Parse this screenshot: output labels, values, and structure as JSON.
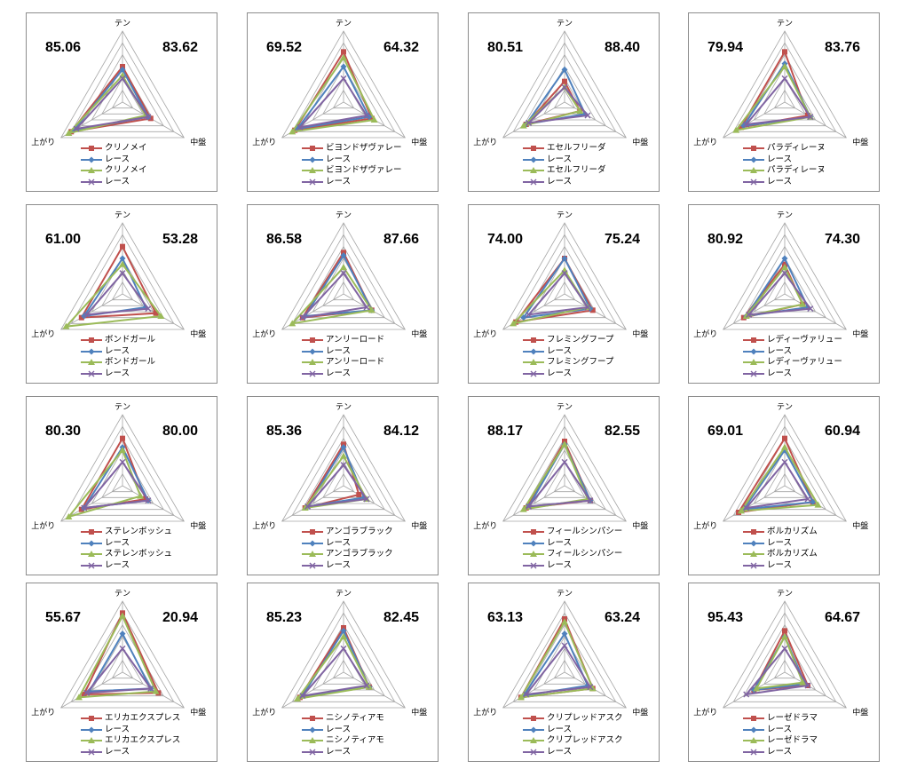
{
  "axes": [
    "テン",
    "中盤",
    "上がり"
  ],
  "colors": {
    "horse": "#c0504d",
    "race": "#4f81bd",
    "horse2": "#9bbb59",
    "race2": "#8064a2"
  },
  "charts": [
    {
      "type": "radar",
      "scores": [
        "85.06",
        "83.62"
      ],
      "series": [
        {
          "name": "クリノメイ",
          "marker": "square",
          "values": [
            60,
            55,
            100
          ]
        },
        {
          "name": "レース",
          "marker": "diamond",
          "values": [
            55,
            50,
            95
          ]
        },
        {
          "name": "クリノメイ",
          "marker": "triangle",
          "values": [
            45,
            45,
            105
          ]
        },
        {
          "name": "レース",
          "marker": "x",
          "values": [
            40,
            50,
            90
          ]
        }
      ]
    },
    {
      "type": "radar",
      "scores": [
        "69.52",
        "64.32"
      ],
      "series": [
        {
          "name": "ビヨンドザヴァレー",
          "marker": "square",
          "values": [
            85,
            55,
            95
          ]
        },
        {
          "name": "レース",
          "marker": "diamond",
          "values": [
            60,
            50,
            90
          ]
        },
        {
          "name": "ビヨンドザヴァレー",
          "marker": "triangle",
          "values": [
            75,
            60,
            100
          ]
        },
        {
          "name": "レース",
          "marker": "x",
          "values": [
            40,
            45,
            85
          ]
        }
      ]
    },
    {
      "type": "radar",
      "scores": [
        "80.51",
        "88.40"
      ],
      "series": [
        {
          "name": "エセルフリーダ",
          "marker": "square",
          "values": [
            35,
            30,
            75
          ]
        },
        {
          "name": "レース",
          "marker": "diamond",
          "values": [
            55,
            40,
            75
          ]
        },
        {
          "name": "エセルフリーダ",
          "marker": "triangle",
          "values": [
            25,
            30,
            80
          ]
        },
        {
          "name": "レース",
          "marker": "x",
          "values": [
            25,
            45,
            70
          ]
        }
      ]
    },
    {
      "type": "radar",
      "scores": [
        "79.94",
        "83.76"
      ],
      "series": [
        {
          "name": "パラディレーヌ",
          "marker": "square",
          "values": [
            85,
            45,
            85
          ]
        },
        {
          "name": "レース",
          "marker": "diamond",
          "values": [
            65,
            50,
            80
          ]
        },
        {
          "name": "パラディレーヌ",
          "marker": "triangle",
          "values": [
            60,
            50,
            95
          ]
        },
        {
          "name": "レース",
          "marker": "x",
          "values": [
            40,
            50,
            75
          ]
        }
      ]
    },
    {
      "type": "radar",
      "scores": [
        "61.00",
        "53.28"
      ],
      "series": [
        {
          "name": "ボンドガール",
          "marker": "square",
          "values": [
            80,
            65,
            80
          ]
        },
        {
          "name": "レース",
          "marker": "diamond",
          "values": [
            60,
            45,
            75
          ]
        },
        {
          "name": "ボンドガール",
          "marker": "triangle",
          "values": [
            50,
            75,
            110
          ]
        },
        {
          "name": "レース",
          "marker": "x",
          "values": [
            35,
            50,
            70
          ]
        }
      ]
    },
    {
      "type": "radar",
      "scores": [
        "86.58",
        "87.66"
      ],
      "series": [
        {
          "name": "アンリーロード",
          "marker": "square",
          "values": [
            70,
            55,
            80
          ]
        },
        {
          "name": "レース",
          "marker": "diamond",
          "values": [
            65,
            55,
            75
          ]
        },
        {
          "name": "アンリーロード",
          "marker": "triangle",
          "values": [
            45,
            55,
            100
          ]
        },
        {
          "name": "レース",
          "marker": "x",
          "values": [
            35,
            45,
            80
          ]
        }
      ]
    },
    {
      "type": "radar",
      "scores": [
        "74.00",
        "75.24"
      ],
      "series": [
        {
          "name": "フレミングフープ",
          "marker": "square",
          "values": [
            60,
            55,
            95
          ]
        },
        {
          "name": "レース",
          "marker": "diamond",
          "values": [
            60,
            50,
            80
          ]
        },
        {
          "name": "フレミングフープ",
          "marker": "triangle",
          "values": [
            40,
            45,
            100
          ]
        },
        {
          "name": "レース",
          "marker": "x",
          "values": [
            35,
            45,
            70
          ]
        }
      ]
    },
    {
      "type": "radar",
      "scores": [
        "80.92",
        "74.30"
      ],
      "series": [
        {
          "name": "レディーヴァリュー",
          "marker": "square",
          "values": [
            50,
            35,
            80
          ]
        },
        {
          "name": "レース",
          "marker": "diamond",
          "values": [
            60,
            45,
            75
          ]
        },
        {
          "name": "レディーヴァリュー",
          "marker": "triangle",
          "values": [
            45,
            35,
            75
          ]
        },
        {
          "name": "レース",
          "marker": "x",
          "values": [
            35,
            50,
            70
          ]
        }
      ]
    },
    {
      "type": "radar",
      "scores": [
        "80.30",
        "80.00"
      ],
      "series": [
        {
          "name": "ステレンボッシュ",
          "marker": "square",
          "values": [
            80,
            45,
            80
          ]
        },
        {
          "name": "レース",
          "marker": "diamond",
          "values": [
            65,
            50,
            75
          ]
        },
        {
          "name": "ステレンボッシュ",
          "marker": "triangle",
          "values": [
            60,
            35,
            105
          ]
        },
        {
          "name": "レース",
          "marker": "x",
          "values": [
            40,
            50,
            75
          ]
        }
      ]
    },
    {
      "type": "radar",
      "scores": [
        "85.36",
        "84.12"
      ],
      "series": [
        {
          "name": "アンゴラブラック",
          "marker": "square",
          "values": [
            70,
            30,
            75
          ]
        },
        {
          "name": "レース",
          "marker": "diamond",
          "values": [
            65,
            40,
            70
          ]
        },
        {
          "name": "アンゴラブラック",
          "marker": "triangle",
          "values": [
            50,
            45,
            75
          ]
        },
        {
          "name": "レース",
          "marker": "x",
          "values": [
            35,
            45,
            70
          ]
        }
      ]
    },
    {
      "type": "radar",
      "scores": [
        "88.17",
        "82.55"
      ],
      "series": [
        {
          "name": "フィールシンパシー",
          "marker": "square",
          "values": [
            75,
            50,
            75
          ]
        },
        {
          "name": "レース",
          "marker": "diamond",
          "values": [
            70,
            50,
            70
          ]
        },
        {
          "name": "フィールシンパシー",
          "marker": "triangle",
          "values": [
            70,
            45,
            80
          ]
        },
        {
          "name": "レース",
          "marker": "x",
          "values": [
            40,
            50,
            70
          ]
        }
      ]
    },
    {
      "type": "radar",
      "scores": [
        "69.01",
        "60.94"
      ],
      "series": [
        {
          "name": "ボルカリズム",
          "marker": "square",
          "values": [
            80,
            55,
            90
          ]
        },
        {
          "name": "レース",
          "marker": "diamond",
          "values": [
            60,
            55,
            80
          ]
        },
        {
          "name": "ボルカリズム",
          "marker": "triangle",
          "values": [
            65,
            65,
            85
          ]
        },
        {
          "name": "レース",
          "marker": "x",
          "values": [
            40,
            45,
            75
          ]
        }
      ]
    },
    {
      "type": "radar",
      "scores": [
        "55.67",
        "20.94"
      ],
      "series": [
        {
          "name": "エリカエクスプレス",
          "marker": "square",
          "values": [
            100,
            70,
            75
          ]
        },
        {
          "name": "レース",
          "marker": "diamond",
          "values": [
            65,
            55,
            65
          ]
        },
        {
          "name": "エリカエクスプレス",
          "marker": "triangle",
          "values": [
            95,
            65,
            85
          ]
        },
        {
          "name": "レース",
          "marker": "x",
          "values": [
            40,
            55,
            70
          ]
        }
      ]
    },
    {
      "type": "radar",
      "scores": [
        "85.23",
        "82.45"
      ],
      "series": [
        {
          "name": "ニシノティアモ",
          "marker": "square",
          "values": [
            75,
            50,
            85
          ]
        },
        {
          "name": "レース",
          "marker": "diamond",
          "values": [
            70,
            50,
            80
          ]
        },
        {
          "name": "ニシノティアモ",
          "marker": "triangle",
          "values": [
            60,
            50,
            90
          ]
        },
        {
          "name": "レース",
          "marker": "x",
          "values": [
            40,
            45,
            80
          ]
        }
      ]
    },
    {
      "type": "radar",
      "scores": [
        "63.13",
        "63.24"
      ],
      "series": [
        {
          "name": "クリプレッドアスク",
          "marker": "square",
          "values": [
            90,
            55,
            85
          ]
        },
        {
          "name": "レース",
          "marker": "diamond",
          "values": [
            65,
            45,
            80
          ]
        },
        {
          "name": "クリプレッドアスク",
          "marker": "triangle",
          "values": [
            85,
            55,
            85
          ]
        },
        {
          "name": "レース",
          "marker": "x",
          "values": [
            45,
            50,
            75
          ]
        }
      ]
    },
    {
      "type": "radar",
      "scores": [
        "95.43",
        "64.67"
      ],
      "series": [
        {
          "name": "レーゼドラマ",
          "marker": "square",
          "values": [
            70,
            45,
            60
          ]
        },
        {
          "name": "レース",
          "marker": "diamond",
          "values": [
            60,
            40,
            60
          ]
        },
        {
          "name": "レーゼドラマ",
          "marker": "triangle",
          "values": [
            60,
            35,
            55
          ]
        },
        {
          "name": "レース",
          "marker": "x",
          "values": [
            40,
            45,
            75
          ]
        }
      ]
    }
  ]
}
